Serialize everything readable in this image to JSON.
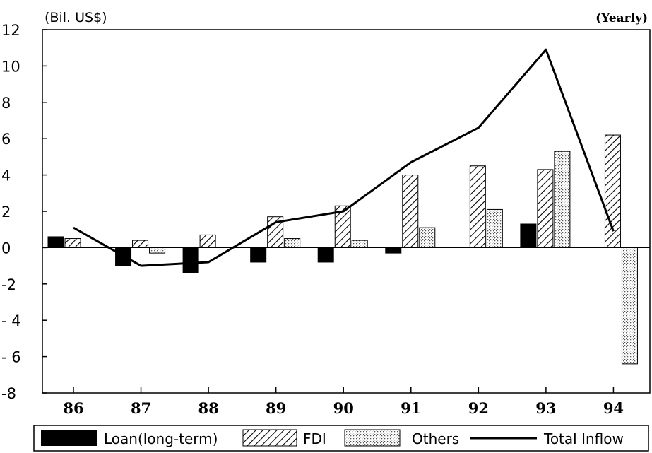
{
  "chart_data": {
    "type": "bar",
    "unit_label": "(Bil. US$)",
    "period_label": "(Yearly)",
    "categories": [
      "86",
      "87",
      "88",
      "89",
      "90",
      "91",
      "92",
      "93",
      "94"
    ],
    "ylim": [
      -8,
      12
    ],
    "yticks": [
      -8,
      -6,
      -4,
      -2,
      0,
      2,
      4,
      6,
      8,
      10,
      12
    ],
    "ytick_labels": [
      "-8",
      "- 6",
      "- 4",
      "-2",
      "0",
      "2",
      "4",
      "6",
      "8",
      "10",
      "12"
    ],
    "grid": false,
    "legend_position": "bottom",
    "series": [
      {
        "name": "Loan(long-term)",
        "type": "bar",
        "pattern": "solid",
        "color": "#000000",
        "values": [
          0.6,
          -1.0,
          -1.4,
          -0.8,
          -0.8,
          -0.3,
          0.0,
          1.3,
          0.0
        ]
      },
      {
        "name": "FDI",
        "type": "bar",
        "pattern": "diagonal-hatch",
        "color": "#000000",
        "values": [
          0.5,
          0.4,
          0.7,
          1.7,
          2.3,
          4.0,
          4.5,
          4.3,
          6.2
        ]
      },
      {
        "name": "Others",
        "type": "bar",
        "pattern": "dotted",
        "color": "#000000",
        "values": [
          0.0,
          -0.3,
          0.0,
          0.5,
          0.4,
          1.1,
          2.1,
          5.3,
          -6.4
        ]
      },
      {
        "name": "Total Inflow",
        "type": "line",
        "color": "#000000",
        "values": [
          1.1,
          -1.0,
          -0.8,
          1.4,
          2.0,
          4.7,
          6.6,
          10.9,
          0.9
        ]
      }
    ]
  }
}
